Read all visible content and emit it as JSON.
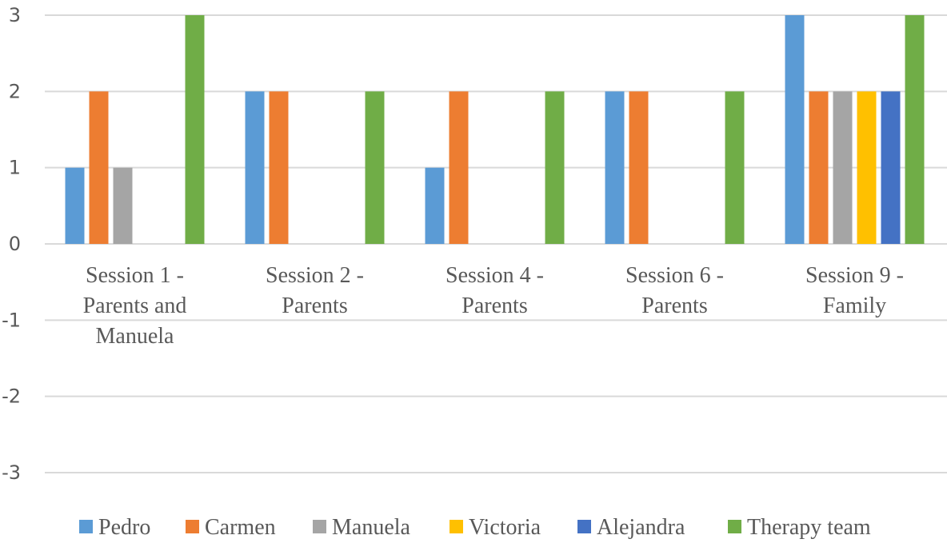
{
  "chart_data": {
    "type": "bar",
    "categories": [
      [
        "Session 1 -",
        "Parents and",
        "Manuela"
      ],
      [
        "Session 2 -",
        "Parents"
      ],
      [
        "Session 4 -",
        "Parents"
      ],
      [
        "Session 6 -",
        "Parents"
      ],
      [
        "Session 9 -",
        "Family"
      ]
    ],
    "series": [
      {
        "name": "Pedro",
        "color": "#5b9bd5",
        "values": [
          1,
          2,
          1,
          2,
          3
        ]
      },
      {
        "name": "Carmen",
        "color": "#ed7d31",
        "values": [
          2,
          2,
          2,
          2,
          2
        ]
      },
      {
        "name": "Manuela",
        "color": "#a5a5a5",
        "values": [
          1,
          0,
          0,
          0,
          2
        ]
      },
      {
        "name": "Victoria",
        "color": "#ffc000",
        "values": [
          0,
          0,
          0,
          0,
          2
        ]
      },
      {
        "name": "Alejandra",
        "color": "#4472c4",
        "values": [
          0,
          0,
          0,
          0,
          2
        ]
      },
      {
        "name": "Therapy team",
        "color": "#70ad47",
        "values": [
          3,
          2,
          2,
          2,
          3
        ]
      }
    ],
    "yticks": [
      3,
      2,
      1,
      0,
      -1,
      -2,
      -3
    ],
    "ylim": [
      -3,
      3
    ],
    "grid": true,
    "legend": "bottom",
    "title": "",
    "xlabel": "",
    "ylabel": ""
  }
}
